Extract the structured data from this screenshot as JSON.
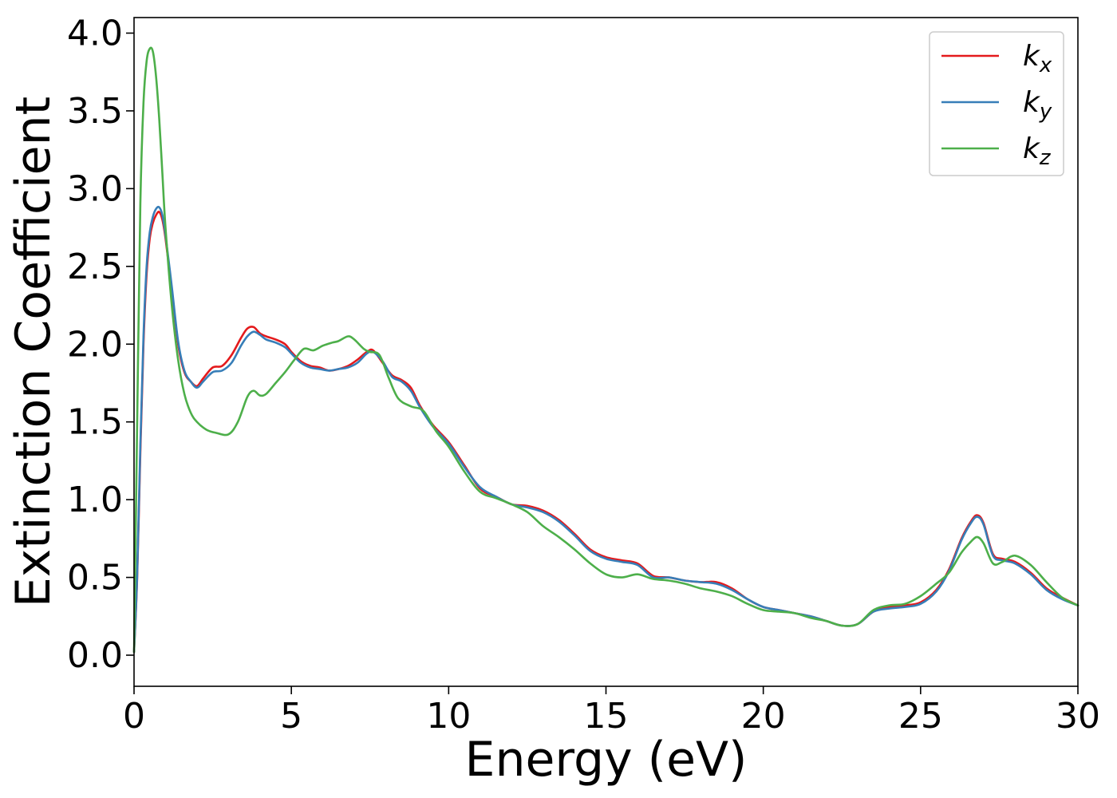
{
  "chart_data": {
    "type": "line",
    "title": "",
    "xlabel": "Energy (eV)",
    "ylabel": "Extinction Coefficient",
    "xlim": [
      0,
      30
    ],
    "ylim": [
      -0.2,
      4.1
    ],
    "xticks": [
      0,
      5,
      10,
      15,
      20,
      25,
      30
    ],
    "xtick_labels": [
      "0",
      "5",
      "10",
      "15",
      "20",
      "25",
      "30"
    ],
    "yticks": [
      0.0,
      0.5,
      1.0,
      1.5,
      2.0,
      2.5,
      3.0,
      3.5,
      4.0
    ],
    "ytick_labels": [
      "0.0",
      "0.5",
      "1.0",
      "1.5",
      "2.0",
      "2.5",
      "3.0",
      "3.5",
      "4.0"
    ],
    "grid": false,
    "legend_position": "top-right",
    "series": [
      {
        "name": "k",
        "subscript": "x",
        "color": "#e41a1c",
        "x": [
          0,
          0.1,
          0.2,
          0.3,
          0.4,
          0.5,
          0.6,
          0.7,
          0.8,
          0.9,
          1.0,
          1.2,
          1.4,
          1.6,
          1.8,
          2.0,
          2.2,
          2.5,
          2.8,
          3.1,
          3.4,
          3.6,
          3.8,
          4.0,
          4.2,
          4.5,
          4.8,
          5.0,
          5.3,
          5.6,
          5.9,
          6.2,
          6.5,
          6.8,
          7.1,
          7.4,
          7.6,
          7.9,
          8.2,
          8.5,
          8.8,
          9.1,
          9.5,
          10.0,
          10.5,
          11.0,
          11.5,
          12.0,
          12.5,
          13.0,
          13.5,
          14.0,
          14.5,
          15.0,
          15.5,
          16.0,
          16.5,
          17.0,
          17.5,
          18.0,
          18.5,
          19.0,
          19.5,
          20.0,
          20.5,
          21.0,
          21.5,
          22.0,
          22.5,
          23.0,
          23.5,
          24.0,
          24.5,
          25.0,
          25.5,
          25.9,
          26.3,
          26.6,
          26.8,
          27.0,
          27.3,
          27.6,
          28.0,
          28.5,
          29.0,
          29.5,
          30.0
        ],
        "y": [
          0.02,
          0.5,
          1.3,
          2.0,
          2.45,
          2.68,
          2.78,
          2.83,
          2.85,
          2.8,
          2.68,
          2.35,
          2.0,
          1.82,
          1.76,
          1.73,
          1.78,
          1.85,
          1.86,
          1.93,
          2.04,
          2.1,
          2.11,
          2.07,
          2.05,
          2.03,
          2.0,
          1.95,
          1.89,
          1.86,
          1.85,
          1.83,
          1.84,
          1.86,
          1.9,
          1.95,
          1.96,
          1.88,
          1.8,
          1.77,
          1.72,
          1.6,
          1.48,
          1.37,
          1.22,
          1.07,
          1.02,
          0.97,
          0.96,
          0.93,
          0.87,
          0.78,
          0.68,
          0.63,
          0.61,
          0.59,
          0.51,
          0.5,
          0.48,
          0.47,
          0.47,
          0.43,
          0.36,
          0.31,
          0.29,
          0.27,
          0.25,
          0.22,
          0.19,
          0.2,
          0.28,
          0.31,
          0.32,
          0.34,
          0.42,
          0.55,
          0.75,
          0.86,
          0.9,
          0.85,
          0.65,
          0.62,
          0.6,
          0.53,
          0.43,
          0.37,
          0.32
        ]
      },
      {
        "name": "k",
        "subscript": "y",
        "color": "#377eb8",
        "x": [
          0,
          0.1,
          0.2,
          0.3,
          0.4,
          0.5,
          0.6,
          0.7,
          0.8,
          0.9,
          1.0,
          1.2,
          1.4,
          1.6,
          1.8,
          2.0,
          2.2,
          2.5,
          2.8,
          3.1,
          3.4,
          3.6,
          3.8,
          4.0,
          4.2,
          4.5,
          4.8,
          5.0,
          5.3,
          5.6,
          5.9,
          6.2,
          6.5,
          6.8,
          7.1,
          7.4,
          7.6,
          7.9,
          8.2,
          8.5,
          8.8,
          9.1,
          9.5,
          10.0,
          10.5,
          11.0,
          11.5,
          12.0,
          12.5,
          13.0,
          13.5,
          14.0,
          14.5,
          15.0,
          15.5,
          16.0,
          16.5,
          17.0,
          17.5,
          18.0,
          18.5,
          19.0,
          19.5,
          20.0,
          20.5,
          21.0,
          21.5,
          22.0,
          22.5,
          23.0,
          23.5,
          24.0,
          24.5,
          25.0,
          25.5,
          25.9,
          26.3,
          26.6,
          26.8,
          27.0,
          27.3,
          27.6,
          28.0,
          28.5,
          29.0,
          29.5,
          30.0
        ],
        "y": [
          0.02,
          0.52,
          1.35,
          2.05,
          2.5,
          2.72,
          2.82,
          2.87,
          2.88,
          2.83,
          2.7,
          2.37,
          2.02,
          1.83,
          1.76,
          1.72,
          1.76,
          1.82,
          1.83,
          1.88,
          1.99,
          2.05,
          2.08,
          2.06,
          2.03,
          2.01,
          1.98,
          1.94,
          1.88,
          1.85,
          1.84,
          1.83,
          1.84,
          1.85,
          1.88,
          1.94,
          1.95,
          1.89,
          1.79,
          1.76,
          1.7,
          1.59,
          1.47,
          1.36,
          1.21,
          1.08,
          1.02,
          0.97,
          0.95,
          0.92,
          0.86,
          0.77,
          0.67,
          0.62,
          0.6,
          0.58,
          0.5,
          0.5,
          0.48,
          0.47,
          0.46,
          0.42,
          0.36,
          0.31,
          0.29,
          0.27,
          0.25,
          0.22,
          0.19,
          0.2,
          0.28,
          0.3,
          0.31,
          0.33,
          0.41,
          0.54,
          0.74,
          0.85,
          0.89,
          0.84,
          0.64,
          0.61,
          0.59,
          0.52,
          0.42,
          0.36,
          0.32
        ]
      },
      {
        "name": "k",
        "subscript": "z",
        "color": "#4daf4a",
        "x": [
          0,
          0.1,
          0.2,
          0.3,
          0.4,
          0.5,
          0.6,
          0.7,
          0.8,
          0.9,
          1.0,
          1.2,
          1.4,
          1.6,
          1.8,
          2.0,
          2.3,
          2.6,
          3.0,
          3.3,
          3.6,
          3.8,
          4.0,
          4.2,
          4.5,
          4.8,
          5.1,
          5.4,
          5.7,
          6.0,
          6.3,
          6.5,
          6.8,
          7.0,
          7.3,
          7.5,
          7.8,
          8.1,
          8.4,
          8.8,
          9.2,
          9.6,
          10.0,
          10.5,
          11.0,
          11.5,
          12.0,
          12.5,
          13.0,
          13.5,
          14.0,
          14.5,
          15.0,
          15.5,
          16.0,
          16.5,
          17.0,
          17.5,
          18.0,
          18.5,
          19.0,
          19.5,
          20.0,
          20.5,
          21.0,
          21.5,
          22.0,
          22.5,
          23.0,
          23.5,
          24.0,
          24.5,
          25.0,
          25.5,
          25.9,
          26.3,
          26.6,
          26.8,
          27.0,
          27.3,
          27.6,
          28.0,
          28.5,
          29.0,
          29.5,
          30.0
        ],
        "y": [
          0.02,
          1.5,
          2.9,
          3.55,
          3.82,
          3.9,
          3.88,
          3.72,
          3.45,
          3.1,
          2.75,
          2.25,
          1.9,
          1.68,
          1.56,
          1.5,
          1.45,
          1.43,
          1.42,
          1.5,
          1.66,
          1.7,
          1.67,
          1.68,
          1.75,
          1.82,
          1.9,
          1.97,
          1.96,
          1.99,
          2.01,
          2.02,
          2.05,
          2.03,
          1.97,
          1.95,
          1.93,
          1.78,
          1.65,
          1.6,
          1.57,
          1.44,
          1.34,
          1.18,
          1.05,
          1.01,
          0.97,
          0.92,
          0.83,
          0.76,
          0.68,
          0.59,
          0.52,
          0.5,
          0.52,
          0.49,
          0.48,
          0.46,
          0.43,
          0.41,
          0.38,
          0.33,
          0.29,
          0.28,
          0.27,
          0.24,
          0.22,
          0.19,
          0.2,
          0.29,
          0.32,
          0.33,
          0.38,
          0.46,
          0.53,
          0.66,
          0.73,
          0.76,
          0.72,
          0.59,
          0.6,
          0.64,
          0.58,
          0.47,
          0.37,
          0.32
        ]
      }
    ]
  }
}
